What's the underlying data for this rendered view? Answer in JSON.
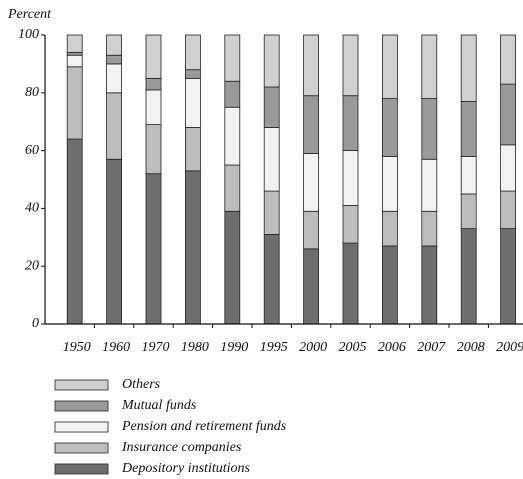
{
  "chart_data": {
    "type": "stacked_bar",
    "y_label": "Percent",
    "categories": [
      "1950",
      "1960",
      "1970",
      "1980",
      "1990",
      "1995",
      "2000",
      "2005",
      "2006",
      "2007",
      "2008",
      "2009"
    ],
    "series": [
      {
        "name": "Depository institutions",
        "color": "#6e6e6e",
        "values": [
          64,
          57,
          52,
          53,
          39,
          31,
          26,
          28,
          27,
          27,
          33,
          33
        ]
      },
      {
        "name": "Insurance companies",
        "color": "#bdbdbd",
        "values": [
          25,
          23,
          17,
          15,
          16,
          15,
          13,
          13,
          12,
          12,
          12,
          13
        ]
      },
      {
        "name": "Pension and retirement funds",
        "color": "#f2f2f2",
        "values": [
          4,
          10,
          12,
          17,
          20,
          22,
          20,
          19,
          19,
          18,
          13,
          16
        ]
      },
      {
        "name": "Mutual funds",
        "color": "#9a9a9a",
        "values": [
          1,
          3,
          4,
          3,
          9,
          14,
          20,
          19,
          20,
          21,
          19,
          21
        ]
      },
      {
        "name": "Others",
        "color": "#d0d0d0",
        "values": [
          6,
          7,
          15,
          12,
          16,
          18,
          21,
          21,
          22,
          22,
          23,
          17
        ]
      }
    ],
    "ylim": [
      0,
      100
    ],
    "yticks": [
      0,
      20,
      40,
      60,
      80,
      100
    ]
  }
}
